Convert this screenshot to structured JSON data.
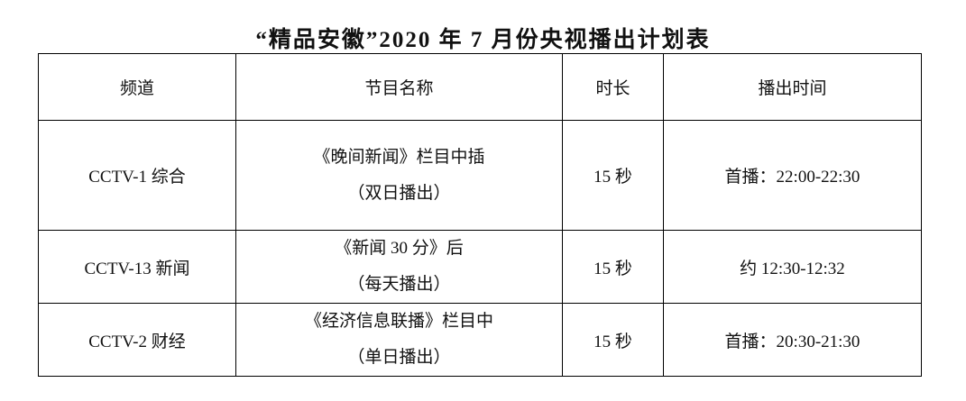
{
  "title": "“精品安徽”2020 年 7 月份央视播出计划表",
  "table": {
    "headers": [
      "频道",
      "节目名称",
      "时长",
      "播出时间"
    ],
    "rows": [
      {
        "channel": "CCTV-1 综合",
        "program_line1": "《晚间新闻》栏目中插",
        "program_line2": "（双日播出）",
        "duration": "15 秒",
        "air_time": "首播：22:00-22:30"
      },
      {
        "channel": "CCTV-13 新闻",
        "program_line1": "《新闻 30 分》后",
        "program_line2": "（每天播出）",
        "duration": "15 秒",
        "air_time": "约 12:30-12:32"
      },
      {
        "channel": "CCTV-2 财经",
        "program_line1": "《经济信息联播》栏目中",
        "program_line2": "（单日播出）",
        "duration": "15 秒",
        "air_time": "首播：20:30-21:30"
      }
    ]
  },
  "colors": {
    "text": "#111111",
    "border": "#000000",
    "background": "#ffffff"
  }
}
